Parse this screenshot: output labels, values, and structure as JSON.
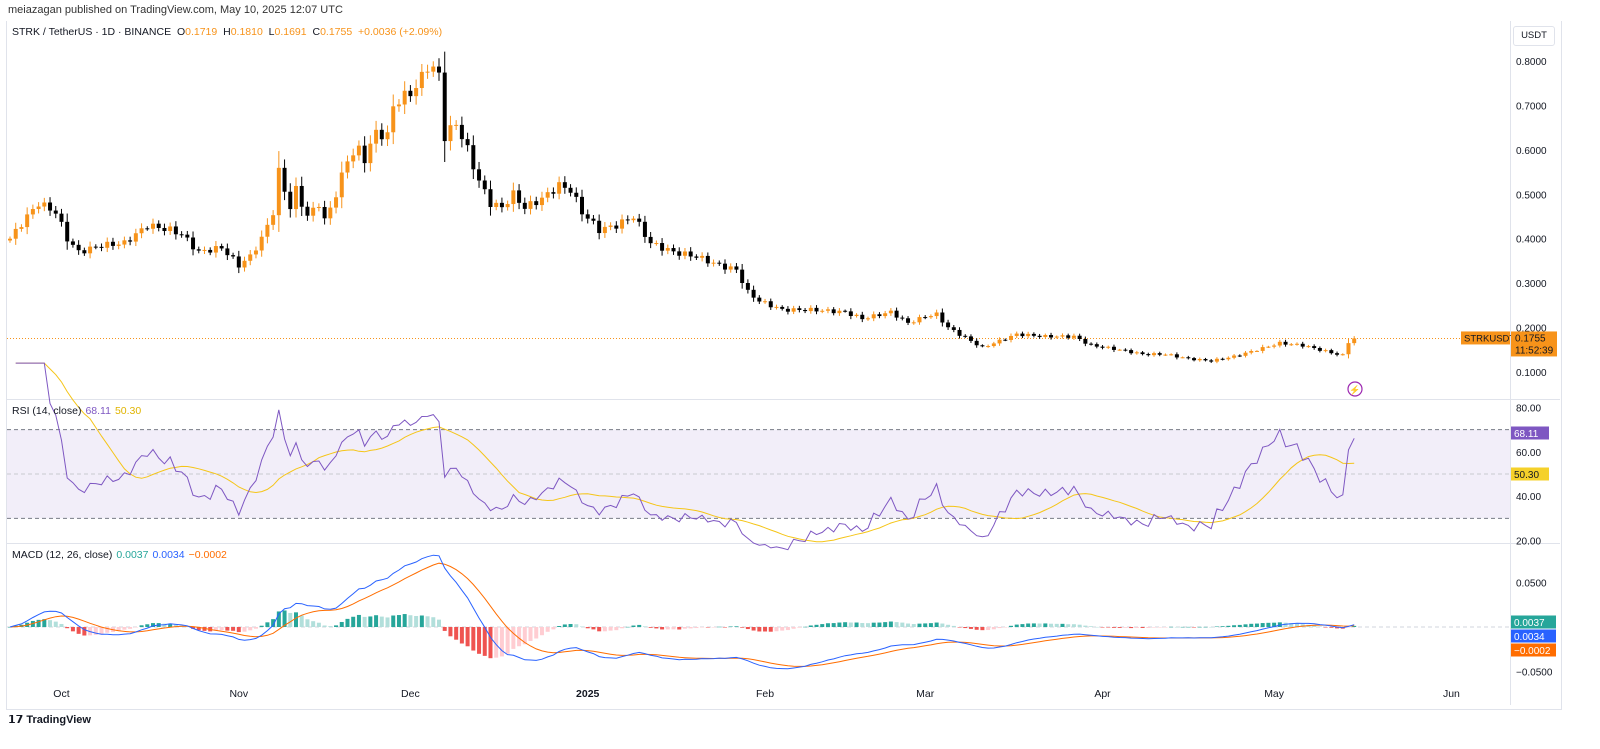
{
  "header": {
    "published": "meiazagan published on TradingView.com, May 10, 2025 12:07 UTC"
  },
  "legend": {
    "symbol": "STRK / TetherUS · 1D · BINANCE",
    "o_label": "O",
    "o": "0.1719",
    "h_label": "H",
    "h": "0.1810",
    "l_label": "L",
    "l": "0.1691",
    "c_label": "C",
    "c": "0.1755",
    "change": "+0.0036 (+2.09%)"
  },
  "currency_button": "USDT",
  "price_tag": {
    "symbol": "STRKUSDT",
    "price": "0.1755",
    "countdown": "11:52:39"
  },
  "rsi": {
    "label": "RSI (14, close)",
    "value": "68.11",
    "ma": "50.30",
    "colors": {
      "rsi": "#7e57c2",
      "ma": "#f5c518"
    }
  },
  "macd": {
    "label": "MACD (12, 26, close)",
    "hist": "0.0037",
    "macd": "0.0034",
    "signal": "−0.0002",
    "colors": {
      "macd": "#2962ff",
      "signal": "#ff6d00",
      "hist_up": "#26a69a",
      "hist_down": "#ef5350"
    }
  },
  "footer": {
    "logo": "TradingView"
  },
  "chart_data": [
    {
      "type": "candlestick",
      "title": "STRK / TetherUS 1D",
      "ylim": [
        0.07,
        0.83
      ],
      "yticks": [
        "0.8000",
        "0.7000",
        "0.6000",
        "0.5000",
        "0.4000",
        "0.3000",
        "0.2000",
        "0.1000"
      ],
      "yvals": [
        0.8,
        0.7,
        0.6,
        0.5,
        0.4,
        0.3,
        0.2,
        0.1
      ],
      "xticks": [
        {
          "label": "Oct",
          "day": 9
        },
        {
          "label": "Nov",
          "day": 40
        },
        {
          "label": "Dec",
          "day": 70
        },
        {
          "label": "2025",
          "day": 101
        },
        {
          "label": "Feb",
          "day": 132
        },
        {
          "label": "Mar",
          "day": 160
        },
        {
          "label": "Apr",
          "day": 191
        },
        {
          "label": "May",
          "day": 221
        },
        {
          "label": "Jun",
          "day": 252
        }
      ],
      "close_keypoints": [
        [
          0,
          0.4
        ],
        [
          3,
          0.45
        ],
        [
          5,
          0.48
        ],
        [
          8,
          0.46
        ],
        [
          10,
          0.4
        ],
        [
          12,
          0.37
        ],
        [
          16,
          0.385
        ],
        [
          20,
          0.39
        ],
        [
          24,
          0.43
        ],
        [
          28,
          0.42
        ],
        [
          30,
          0.41
        ],
        [
          33,
          0.37
        ],
        [
          37,
          0.38
        ],
        [
          40,
          0.34
        ],
        [
          42,
          0.36
        ],
        [
          44,
          0.4
        ],
        [
          46,
          0.46
        ],
        [
          47,
          0.55
        ],
        [
          49,
          0.47
        ],
        [
          50,
          0.51
        ],
        [
          52,
          0.45
        ],
        [
          54,
          0.48
        ],
        [
          55,
          0.44
        ],
        [
          57,
          0.5
        ],
        [
          59,
          0.58
        ],
        [
          61,
          0.6
        ],
        [
          62,
          0.58
        ],
        [
          64,
          0.64
        ],
        [
          66,
          0.63
        ],
        [
          67,
          0.7
        ],
        [
          69,
          0.72
        ],
        [
          71,
          0.74
        ],
        [
          73,
          0.79
        ],
        [
          75,
          0.77
        ],
        [
          76,
          0.63
        ],
        [
          78,
          0.66
        ],
        [
          80,
          0.6
        ],
        [
          82,
          0.53
        ],
        [
          84,
          0.48
        ],
        [
          86,
          0.47
        ],
        [
          88,
          0.5
        ],
        [
          90,
          0.47
        ],
        [
          93,
          0.49
        ],
        [
          96,
          0.52
        ],
        [
          98,
          0.51
        ],
        [
          100,
          0.46
        ],
        [
          103,
          0.42
        ],
        [
          106,
          0.43
        ],
        [
          109,
          0.45
        ],
        [
          112,
          0.39
        ],
        [
          116,
          0.37
        ],
        [
          120,
          0.36
        ],
        [
          124,
          0.34
        ],
        [
          127,
          0.33
        ],
        [
          129,
          0.28
        ],
        [
          131,
          0.26
        ],
        [
          135,
          0.24
        ],
        [
          140,
          0.24
        ],
        [
          146,
          0.235
        ],
        [
          149,
          0.22
        ],
        [
          154,
          0.235
        ],
        [
          157,
          0.21
        ],
        [
          160,
          0.225
        ],
        [
          162,
          0.23
        ],
        [
          164,
          0.2
        ],
        [
          168,
          0.17
        ],
        [
          170,
          0.155
        ],
        [
          173,
          0.17
        ],
        [
          176,
          0.185
        ],
        [
          181,
          0.18
        ],
        [
          186,
          0.18
        ],
        [
          189,
          0.16
        ],
        [
          194,
          0.15
        ],
        [
          198,
          0.14
        ],
        [
          202,
          0.14
        ],
        [
          206,
          0.13
        ],
        [
          210,
          0.125
        ],
        [
          214,
          0.135
        ],
        [
          218,
          0.15
        ],
        [
          222,
          0.165
        ],
        [
          226,
          0.16
        ],
        [
          229,
          0.15
        ],
        [
          232,
          0.14
        ],
        [
          233,
          0.14
        ],
        [
          234,
          0.165
        ],
        [
          235,
          0.1755
        ]
      ]
    },
    {
      "type": "line",
      "title": "RSI (14, close)",
      "ylim": [
        20,
        80
      ],
      "yticks": [
        "80.00",
        "60.00",
        "40.00",
        "20.00"
      ],
      "yvals": [
        80,
        60,
        40,
        20
      ],
      "bands": [
        30,
        50,
        70
      ]
    },
    {
      "type": "line+bar",
      "title": "MACD (12, 26, close)",
      "ylim": [
        -0.056,
        0.08
      ],
      "yticks": [
        "0.0500",
        "−0.0500"
      ],
      "yvals": [
        0.05,
        -0.05
      ]
    }
  ]
}
